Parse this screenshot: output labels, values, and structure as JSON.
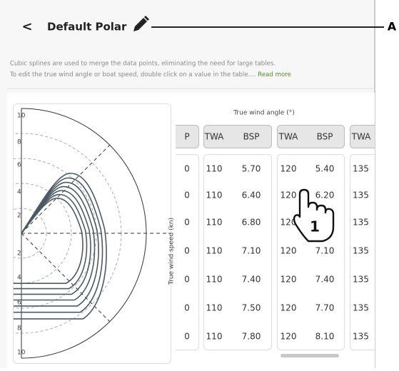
{
  "header": {
    "back": "<",
    "title": "Default Polar"
  },
  "callouts": {
    "a": "A",
    "step": "1"
  },
  "description": {
    "line1": "Cubic splines are used to merge the data points, eliminating the need for large tables.",
    "line2": "To edit the true wind angle or boat speed, double click on a value in the table.... ",
    "read_more": "Read more"
  },
  "polar": {
    "labels": [
      "10",
      "8",
      "6",
      "4",
      "2",
      "2",
      "4",
      "6",
      "8",
      "10"
    ]
  },
  "table": {
    "title": "True wind angle (°)",
    "y_label": "True wind speed (kn)",
    "columns": [
      "P",
      "TWA",
      "BSP",
      "TWA",
      "BSP",
      "TWA"
    ],
    "rows": [
      [
        "0",
        "110",
        "5.70",
        "120",
        "5.40",
        "135"
      ],
      [
        "0",
        "110",
        "6.40",
        "120",
        "6.20",
        "135"
      ],
      [
        "0",
        "110",
        "6.80",
        "120",
        "6.60",
        "135"
      ],
      [
        "0",
        "110",
        "7.10",
        "120",
        "7.10",
        "135"
      ],
      [
        "0",
        "110",
        "7.40",
        "120",
        "7.40",
        "135"
      ],
      [
        "0",
        "110",
        "7.50",
        "120",
        "7.70",
        "135"
      ],
      [
        "0",
        "110",
        "7.80",
        "120",
        "8.10",
        "135"
      ]
    ]
  }
}
